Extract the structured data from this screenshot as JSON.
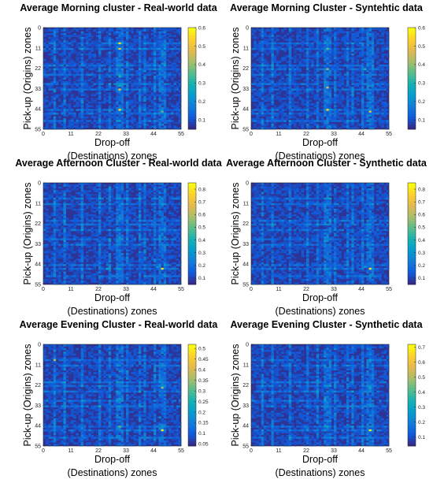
{
  "chart_data": [
    {
      "type": "heatmap",
      "title": "Average Morning cluster - Real-world data",
      "xlabel": [
        "Drop-off",
        "(Destinations) zones"
      ],
      "ylabel": "Pick-up (Origins) zones",
      "x_ticks": [
        "0",
        "11",
        "22",
        "33",
        "44",
        "55"
      ],
      "y_ticks": [
        "0",
        "11",
        "22",
        "33",
        "44",
        "55"
      ],
      "xlim": [
        0,
        55
      ],
      "ylim": [
        0,
        55
      ],
      "colorbar_ticks": [
        "0.1",
        "0.2",
        "0.3",
        "0.4",
        "0.5",
        "0.6"
      ],
      "color_range": [
        0.05,
        0.6
      ],
      "colormap": "parula",
      "hotspots": [
        {
          "x": 30,
          "y": 8,
          "value": 0.55
        },
        {
          "x": 30,
          "y": 11,
          "value": 0.5
        },
        {
          "x": 30,
          "y": 26,
          "value": 0.3
        },
        {
          "x": 30,
          "y": 33,
          "value": 0.5
        },
        {
          "x": 30,
          "y": 44,
          "value": 0.55
        },
        {
          "x": 47,
          "y": 45,
          "value": 0.35
        }
      ]
    },
    {
      "type": "heatmap",
      "title": "Average Morning Cluster - Syntehtic data",
      "xlabel": [
        "Drop-off",
        "(Destinations) zones"
      ],
      "ylabel": "Pick-up (Origins) zones",
      "x_ticks": [
        "0",
        "11",
        "22",
        "33",
        "44",
        "55"
      ],
      "y_ticks": [
        "0",
        "11",
        "22",
        "33",
        "44",
        "55"
      ],
      "xlim": [
        0,
        55
      ],
      "ylim": [
        0,
        55
      ],
      "colorbar_ticks": [
        "0.1",
        "0.2",
        "0.3",
        "0.4",
        "0.5",
        "0.6"
      ],
      "color_range": [
        0.05,
        0.6
      ],
      "colormap": "parula",
      "hotspots": [
        {
          "x": 30,
          "y": 11,
          "value": 0.35
        },
        {
          "x": 30,
          "y": 22,
          "value": 0.4
        },
        {
          "x": 30,
          "y": 32,
          "value": 0.45
        },
        {
          "x": 30,
          "y": 44,
          "value": 0.55
        },
        {
          "x": 47,
          "y": 45,
          "value": 0.5
        },
        {
          "x": 45,
          "y": 22,
          "value": 0.3
        }
      ]
    },
    {
      "type": "heatmap",
      "title": "Average Afternoon Cluster - Real-world data",
      "xlabel": [
        "Drop-off",
        "(Destinations) zones"
      ],
      "ylabel": "Pick-up (Origins) zones",
      "x_ticks": [
        "0",
        "11",
        "22",
        "33",
        "44",
        "55"
      ],
      "y_ticks": [
        "0",
        "11",
        "22",
        "33",
        "44",
        "55"
      ],
      "xlim": [
        0,
        55
      ],
      "ylim": [
        0,
        55
      ],
      "colorbar_ticks": [
        "0.1",
        "0.2",
        "0.3",
        "0.4",
        "0.5",
        "0.6",
        "0.7",
        "0.8"
      ],
      "color_range": [
        0.05,
        0.85
      ],
      "colormap": "parula",
      "hotspots": [
        {
          "x": 47,
          "y": 46,
          "value": 0.8
        },
        {
          "x": 45,
          "y": 45,
          "value": 0.3
        },
        {
          "x": 25,
          "y": 46,
          "value": 0.35
        },
        {
          "x": 30,
          "y": 33,
          "value": 0.25
        }
      ]
    },
    {
      "type": "heatmap",
      "title": "Average Afternoon Cluster - Synthetic data",
      "xlabel": [
        "Drop-off",
        "(Destinations) zones"
      ],
      "ylabel": "Pick-up (Origins) zones",
      "x_ticks": [
        "0",
        "11",
        "22",
        "33",
        "44",
        "55"
      ],
      "y_ticks": [
        "0",
        "11",
        "22",
        "33",
        "44",
        "55"
      ],
      "xlim": [
        0,
        55
      ],
      "ylim": [
        0,
        55
      ],
      "colorbar_ticks": [
        "0.1",
        "0.2",
        "0.3",
        "0.4",
        "0.5",
        "0.6",
        "0.7",
        "0.8"
      ],
      "color_range": [
        0.05,
        0.85
      ],
      "colormap": "parula",
      "hotspots": [
        {
          "x": 47,
          "y": 46,
          "value": 0.8
        },
        {
          "x": 45,
          "y": 45,
          "value": 0.3
        },
        {
          "x": 30,
          "y": 46,
          "value": 0.3
        },
        {
          "x": 30,
          "y": 33,
          "value": 0.2
        }
      ]
    },
    {
      "type": "heatmap",
      "title": "Average Evening Cluster - Real-world data",
      "xlabel": [
        "Drop-off",
        "(Destinations) zones"
      ],
      "ylabel": "Pick-up (Origins) zones",
      "x_ticks": [
        "0",
        "11",
        "22",
        "33",
        "44",
        "55"
      ],
      "y_ticks": [
        "0",
        "11",
        "22",
        "33",
        "44",
        "55"
      ],
      "xlim": [
        0,
        55
      ],
      "ylim": [
        0,
        55
      ],
      "colorbar_ticks": [
        "0.05",
        "0.1",
        "0.15",
        "0.2",
        "0.25",
        "0.3",
        "0.35",
        "0.4",
        "0.45",
        "0.5"
      ],
      "color_range": [
        0.04,
        0.52
      ],
      "colormap": "parula",
      "hotspots": [
        {
          "x": 4,
          "y": 8,
          "value": 0.35
        },
        {
          "x": 47,
          "y": 46,
          "value": 0.5
        },
        {
          "x": 47,
          "y": 23,
          "value": 0.35
        },
        {
          "x": 30,
          "y": 44,
          "value": 0.3
        },
        {
          "x": 22,
          "y": 33,
          "value": 0.25
        }
      ]
    },
    {
      "type": "heatmap",
      "title": "Average Evening Cluster - Synthetic data",
      "xlabel": [
        "Drop-off",
        "(Destinations) zones"
      ],
      "ylabel": "Pick-up (Origins) zones",
      "x_ticks": [
        "0",
        "11",
        "22",
        "33",
        "44",
        "55"
      ],
      "y_ticks": [
        "0",
        "11",
        "22",
        "33",
        "44",
        "55"
      ],
      "xlim": [
        0,
        55
      ],
      "ylim": [
        0,
        55
      ],
      "colorbar_ticks": [
        "0.1",
        "0.2",
        "0.3",
        "0.4",
        "0.5",
        "0.6",
        "0.7"
      ],
      "color_range": [
        0.04,
        0.72
      ],
      "colormap": "parula",
      "hotspots": [
        {
          "x": 47,
          "y": 46,
          "value": 0.7
        },
        {
          "x": 47,
          "y": 23,
          "value": 0.3
        },
        {
          "x": 30,
          "y": 44,
          "value": 0.3
        },
        {
          "x": 8,
          "y": 20,
          "value": 0.2
        }
      ]
    }
  ]
}
